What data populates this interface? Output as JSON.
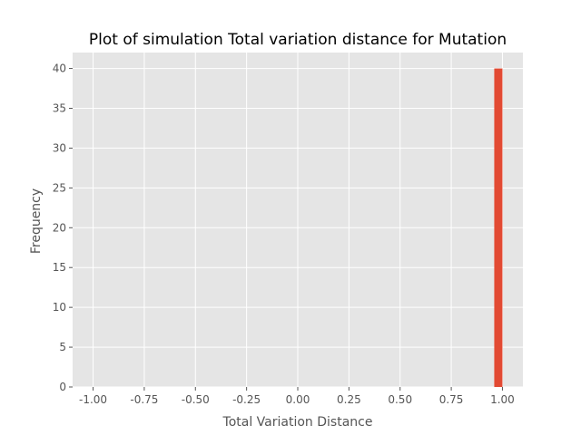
{
  "chart_data": {
    "type": "bar",
    "title": "Plot of simulation Total variation distance for Mutation",
    "xlabel": "Total Variation Distance",
    "ylabel": "Frequency",
    "xlim": [
      -1.1,
      1.1
    ],
    "ylim": [
      0,
      42
    ],
    "x_ticks": [
      -1.0,
      -0.75,
      -0.5,
      -0.25,
      0.0,
      0.25,
      0.5,
      0.75,
      1.0
    ],
    "x_tick_labels": [
      "-1.00",
      "-0.75",
      "-0.50",
      "-0.25",
      "0.00",
      "0.25",
      "0.50",
      "0.75",
      "1.00"
    ],
    "y_ticks": [
      0,
      5,
      10,
      15,
      20,
      25,
      30,
      35,
      40
    ],
    "y_tick_labels": [
      "0",
      "5",
      "10",
      "15",
      "20",
      "25",
      "30",
      "35",
      "40"
    ],
    "bars": [
      {
        "x_start": 0.96,
        "x_end": 1.0,
        "value": 40
      }
    ],
    "grid": true,
    "legend": "none",
    "colors": {
      "bar": "#E24A33",
      "plot_background": "#E5E5E5",
      "grid": "#FFFFFF"
    }
  }
}
